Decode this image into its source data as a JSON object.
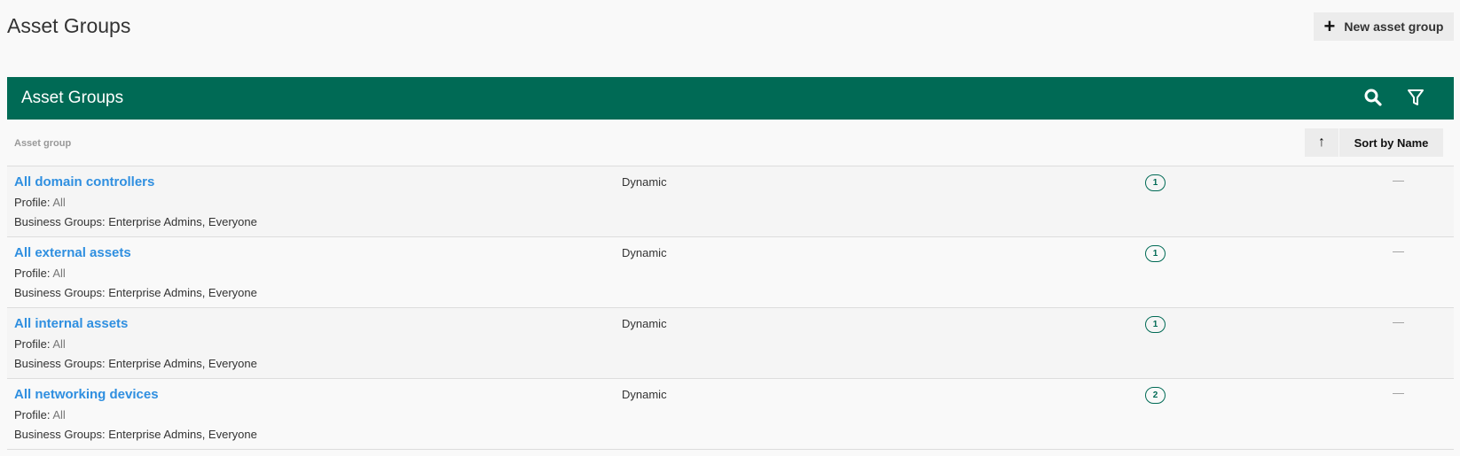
{
  "page": {
    "title": "Asset Groups",
    "new_button": "New asset group"
  },
  "panel": {
    "title": "Asset Groups",
    "column_header": "Asset group",
    "sort_label": "Sort by Name",
    "sort_arrow": "↑"
  },
  "rows": [
    {
      "name": "All domain controllers",
      "profile_label": "Profile:",
      "profile": "All",
      "business_groups": "Business Groups: Enterprise Admins, Everyone",
      "type": "Dynamic",
      "count": "1",
      "extra": "—"
    },
    {
      "name": "All external assets",
      "profile_label": "Profile:",
      "profile": "All",
      "business_groups": "Business Groups: Enterprise Admins, Everyone",
      "type": "Dynamic",
      "count": "1",
      "extra": "—"
    },
    {
      "name": "All internal assets",
      "profile_label": "Profile:",
      "profile": "All",
      "business_groups": "Business Groups: Enterprise Admins, Everyone",
      "type": "Dynamic",
      "count": "1",
      "extra": "—"
    },
    {
      "name": "All networking devices",
      "profile_label": "Profile:",
      "profile": "All",
      "business_groups": "Business Groups: Enterprise Admins, Everyone",
      "type": "Dynamic",
      "count": "2",
      "extra": "—"
    }
  ],
  "colors": {
    "accent": "#006a55",
    "link": "#2f8fe0"
  }
}
